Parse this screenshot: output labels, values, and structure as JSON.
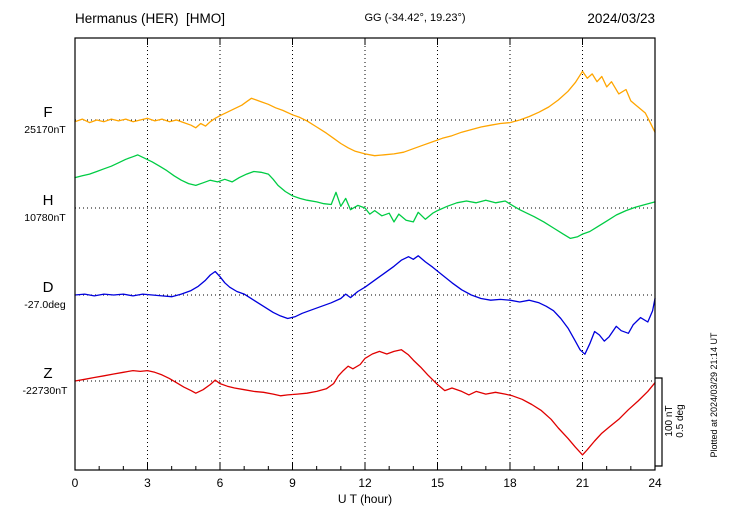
{
  "header": {
    "title": "Hermanus (HER)  [HMO]",
    "coords": "GG (-34.42°, 19.23°)",
    "date": "2024/03/23"
  },
  "axis": {
    "xlabel": "U T (hour)",
    "xticks": [
      0,
      3,
      6,
      9,
      12,
      15,
      18,
      21,
      24
    ]
  },
  "scale_bar": {
    "nt_label": "100 nT",
    "deg_label": "0.5 deg"
  },
  "plot_note": "Plotted at 2024/03/29 21:14 UT",
  "chart_data": {
    "type": "line",
    "title": "Hermanus (HER) [HMO] magnetogram, 2024/03/23",
    "xlabel": "U T (hour)",
    "x_range": [
      0,
      24
    ],
    "x_unit": "hour UT",
    "grid": "dotted vertical lines every 3 h; dotted horizontal baseline per trace",
    "scale_per_division": {
      "nT": 100,
      "deg": 0.5
    },
    "series": [
      {
        "name": "F",
        "baseline_label": "25170nT",
        "baseline_value": 25170,
        "unit": "nT",
        "color": "#ffa500",
        "offsets_unit": "nT deviation from baseline",
        "points": [
          [
            0,
            -2
          ],
          [
            0.3,
            1
          ],
          [
            0.6,
            -3
          ],
          [
            0.9,
            0
          ],
          [
            1.2,
            -2
          ],
          [
            1.5,
            1
          ],
          [
            1.8,
            -1
          ],
          [
            2.1,
            1
          ],
          [
            2.4,
            -2
          ],
          [
            2.7,
            0
          ],
          [
            3,
            2
          ],
          [
            3.3,
            -1
          ],
          [
            3.6,
            1
          ],
          [
            3.9,
            -2
          ],
          [
            4.2,
            0
          ],
          [
            4.5,
            -3
          ],
          [
            4.8,
            -6
          ],
          [
            5,
            -9
          ],
          [
            5.2,
            -4
          ],
          [
            5.4,
            -7
          ],
          [
            5.6,
            -2
          ],
          [
            5.8,
            2
          ],
          [
            6,
            5
          ],
          [
            6.3,
            9
          ],
          [
            6.6,
            13
          ],
          [
            6.9,
            17
          ],
          [
            7.1,
            21
          ],
          [
            7.3,
            25
          ],
          [
            7.5,
            23
          ],
          [
            7.7,
            21
          ],
          [
            8,
            18
          ],
          [
            8.3,
            14
          ],
          [
            8.6,
            11
          ],
          [
            9,
            6
          ],
          [
            9.3,
            3
          ],
          [
            9.6,
            -1
          ],
          [
            10,
            -8
          ],
          [
            10.4,
            -15
          ],
          [
            10.7,
            -21
          ],
          [
            11,
            -27
          ],
          [
            11.3,
            -32
          ],
          [
            11.6,
            -36
          ],
          [
            12,
            -39
          ],
          [
            12.4,
            -41
          ],
          [
            12.8,
            -40
          ],
          [
            13.2,
            -39
          ],
          [
            13.6,
            -37
          ],
          [
            14,
            -33
          ],
          [
            14.4,
            -29
          ],
          [
            14.8,
            -25
          ],
          [
            15.2,
            -21
          ],
          [
            15.6,
            -18
          ],
          [
            16,
            -14
          ],
          [
            16.4,
            -11
          ],
          [
            16.8,
            -8
          ],
          [
            17.2,
            -6
          ],
          [
            17.6,
            -4
          ],
          [
            18,
            -3
          ],
          [
            18.4,
            0
          ],
          [
            18.8,
            4
          ],
          [
            19.2,
            9
          ],
          [
            19.6,
            15
          ],
          [
            20,
            23
          ],
          [
            20.4,
            33
          ],
          [
            20.7,
            43
          ],
          [
            21,
            56
          ],
          [
            21.2,
            48
          ],
          [
            21.4,
            53
          ],
          [
            21.6,
            44
          ],
          [
            21.8,
            50
          ],
          [
            22,
            38
          ],
          [
            22.2,
            44
          ],
          [
            22.5,
            30
          ],
          [
            22.8,
            35
          ],
          [
            23,
            22
          ],
          [
            23.3,
            15
          ],
          [
            23.6,
            8
          ],
          [
            23.8,
            -3
          ],
          [
            24,
            -14
          ]
        ]
      },
      {
        "name": "H",
        "baseline_label": "10780nT",
        "baseline_value": 10780,
        "unit": "nT",
        "color": "#00cc44",
        "offsets_unit": "nT deviation from baseline",
        "points": [
          [
            0,
            35
          ],
          [
            0.3,
            37
          ],
          [
            0.6,
            39
          ],
          [
            0.9,
            42
          ],
          [
            1.2,
            45
          ],
          [
            1.5,
            48
          ],
          [
            1.8,
            52
          ],
          [
            2.1,
            56
          ],
          [
            2.4,
            59
          ],
          [
            2.6,
            61
          ],
          [
            2.9,
            57
          ],
          [
            3.2,
            53
          ],
          [
            3.5,
            48
          ],
          [
            3.8,
            43
          ],
          [
            4.1,
            37
          ],
          [
            4.4,
            32
          ],
          [
            4.7,
            28
          ],
          [
            5,
            26
          ],
          [
            5.3,
            29
          ],
          [
            5.6,
            32
          ],
          [
            5.9,
            30
          ],
          [
            6.2,
            33
          ],
          [
            6.5,
            30
          ],
          [
            6.8,
            35
          ],
          [
            7.1,
            39
          ],
          [
            7.4,
            42
          ],
          [
            7.7,
            41
          ],
          [
            8,
            39
          ],
          [
            8.2,
            33
          ],
          [
            8.4,
            26
          ],
          [
            8.7,
            19
          ],
          [
            9,
            14
          ],
          [
            9.3,
            11
          ],
          [
            9.6,
            9
          ],
          [
            10,
            7
          ],
          [
            10.3,
            5
          ],
          [
            10.6,
            4
          ],
          [
            10.8,
            18
          ],
          [
            11,
            2
          ],
          [
            11.2,
            11
          ],
          [
            11.4,
            -2
          ],
          [
            11.7,
            3
          ],
          [
            12,
            0
          ],
          [
            12.2,
            -7
          ],
          [
            12.4,
            -3
          ],
          [
            12.7,
            -9
          ],
          [
            13,
            -6
          ],
          [
            13.2,
            -16
          ],
          [
            13.4,
            -7
          ],
          [
            13.7,
            -14
          ],
          [
            14,
            -16
          ],
          [
            14.2,
            -5
          ],
          [
            14.5,
            -13
          ],
          [
            14.8,
            -6
          ],
          [
            15,
            -3
          ],
          [
            15.4,
            2
          ],
          [
            15.8,
            6
          ],
          [
            16.2,
            8
          ],
          [
            16.6,
            6
          ],
          [
            17,
            9
          ],
          [
            17.4,
            6
          ],
          [
            17.8,
            8
          ],
          [
            18.1,
            3
          ],
          [
            18.4,
            -2
          ],
          [
            18.7,
            -6
          ],
          [
            19,
            -10
          ],
          [
            19.4,
            -16
          ],
          [
            19.8,
            -23
          ],
          [
            20.2,
            -30
          ],
          [
            20.5,
            -35
          ],
          [
            20.8,
            -33
          ],
          [
            21,
            -30
          ],
          [
            21.3,
            -27
          ],
          [
            21.6,
            -22
          ],
          [
            22,
            -15
          ],
          [
            22.4,
            -8
          ],
          [
            22.8,
            -3
          ],
          [
            23.2,
            1
          ],
          [
            23.6,
            4
          ],
          [
            24,
            7
          ]
        ]
      },
      {
        "name": "D",
        "baseline_label": "-27.0deg",
        "baseline_value": -27.0,
        "unit": "deg",
        "color": "#0000dd",
        "offsets_unit": "nT-equivalent deviation (100 nT corresponds to 0.5 deg)",
        "points": [
          [
            0,
            0
          ],
          [
            0.4,
            1
          ],
          [
            0.8,
            -1
          ],
          [
            1.2,
            1
          ],
          [
            1.6,
            0
          ],
          [
            2,
            1
          ],
          [
            2.4,
            -1
          ],
          [
            2.8,
            1
          ],
          [
            3.2,
            0
          ],
          [
            3.6,
            -1
          ],
          [
            4,
            -2
          ],
          [
            4.4,
            1
          ],
          [
            4.8,
            5
          ],
          [
            5.1,
            10
          ],
          [
            5.4,
            17
          ],
          [
            5.6,
            23
          ],
          [
            5.8,
            27
          ],
          [
            6,
            21
          ],
          [
            6.2,
            14
          ],
          [
            6.4,
            9
          ],
          [
            6.7,
            4
          ],
          [
            7,
            1
          ],
          [
            7.4,
            -6
          ],
          [
            7.8,
            -13
          ],
          [
            8.2,
            -20
          ],
          [
            8.5,
            -24
          ],
          [
            8.8,
            -27
          ],
          [
            9.1,
            -25
          ],
          [
            9.4,
            -21
          ],
          [
            9.8,
            -17
          ],
          [
            10.2,
            -13
          ],
          [
            10.6,
            -9
          ],
          [
            11,
            -4
          ],
          [
            11.2,
            1
          ],
          [
            11.4,
            -3
          ],
          [
            11.7,
            4
          ],
          [
            12,
            9
          ],
          [
            12.4,
            17
          ],
          [
            12.8,
            25
          ],
          [
            13.2,
            33
          ],
          [
            13.5,
            40
          ],
          [
            13.8,
            44
          ],
          [
            14,
            41
          ],
          [
            14.2,
            45
          ],
          [
            14.5,
            38
          ],
          [
            14.8,
            32
          ],
          [
            15.2,
            23
          ],
          [
            15.6,
            14
          ],
          [
            16,
            6
          ],
          [
            16.4,
            0
          ],
          [
            16.8,
            -4
          ],
          [
            17.2,
            -6
          ],
          [
            17.6,
            -5
          ],
          [
            18,
            -6
          ],
          [
            18.4,
            -8
          ],
          [
            18.8,
            -6
          ],
          [
            19.2,
            -9
          ],
          [
            19.5,
            -13
          ],
          [
            19.8,
            -18
          ],
          [
            20.1,
            -27
          ],
          [
            20.4,
            -38
          ],
          [
            20.7,
            -53
          ],
          [
            20.9,
            -63
          ],
          [
            21.1,
            -68
          ],
          [
            21.3,
            -56
          ],
          [
            21.5,
            -42
          ],
          [
            21.7,
            -46
          ],
          [
            21.9,
            -53
          ],
          [
            22.1,
            -48
          ],
          [
            22.4,
            -36
          ],
          [
            22.6,
            -41
          ],
          [
            22.9,
            -44
          ],
          [
            23.1,
            -34
          ],
          [
            23.4,
            -26
          ],
          [
            23.7,
            -31
          ],
          [
            23.9,
            -18
          ],
          [
            24,
            -4
          ]
        ]
      },
      {
        "name": "Z",
        "baseline_label": "-22730nT",
        "baseline_value": -22730,
        "unit": "nT",
        "color": "#e00000",
        "offsets_unit": "nT deviation from baseline",
        "points": [
          [
            0,
            0
          ],
          [
            0.4,
            2
          ],
          [
            0.8,
            4
          ],
          [
            1.2,
            6
          ],
          [
            1.6,
            8
          ],
          [
            2,
            10
          ],
          [
            2.4,
            12
          ],
          [
            2.7,
            11
          ],
          [
            3,
            12
          ],
          [
            3.3,
            10
          ],
          [
            3.6,
            7
          ],
          [
            3.9,
            3
          ],
          [
            4.2,
            -2
          ],
          [
            4.5,
            -7
          ],
          [
            4.8,
            -11
          ],
          [
            5,
            -14
          ],
          [
            5.3,
            -10
          ],
          [
            5.6,
            -4
          ],
          [
            5.8,
            1
          ],
          [
            6,
            -3
          ],
          [
            6.3,
            -6
          ],
          [
            6.6,
            -8
          ],
          [
            7,
            -10
          ],
          [
            7.4,
            -12
          ],
          [
            7.8,
            -13
          ],
          [
            8.2,
            -15
          ],
          [
            8.5,
            -17
          ],
          [
            8.8,
            -16
          ],
          [
            9.2,
            -15
          ],
          [
            9.6,
            -14
          ],
          [
            10,
            -12
          ],
          [
            10.4,
            -9
          ],
          [
            10.7,
            -3
          ],
          [
            10.9,
            6
          ],
          [
            11.1,
            12
          ],
          [
            11.3,
            17
          ],
          [
            11.5,
            14
          ],
          [
            11.8,
            19
          ],
          [
            12,
            26
          ],
          [
            12.3,
            31
          ],
          [
            12.6,
            34
          ],
          [
            12.9,
            31
          ],
          [
            13.2,
            34
          ],
          [
            13.5,
            36
          ],
          [
            13.8,
            30
          ],
          [
            14,
            24
          ],
          [
            14.3,
            16
          ],
          [
            14.6,
            7
          ],
          [
            15,
            -4
          ],
          [
            15.3,
            -11
          ],
          [
            15.6,
            -8
          ],
          [
            16,
            -12
          ],
          [
            16.3,
            -16
          ],
          [
            16.6,
            -12
          ],
          [
            17,
            -15
          ],
          [
            17.4,
            -13
          ],
          [
            17.8,
            -15
          ],
          [
            18.1,
            -17
          ],
          [
            18.5,
            -21
          ],
          [
            18.9,
            -27
          ],
          [
            19.3,
            -34
          ],
          [
            19.7,
            -44
          ],
          [
            20,
            -54
          ],
          [
            20.4,
            -66
          ],
          [
            20.7,
            -76
          ],
          [
            21,
            -85
          ],
          [
            21.2,
            -79
          ],
          [
            21.5,
            -69
          ],
          [
            21.8,
            -60
          ],
          [
            22.1,
            -53
          ],
          [
            22.5,
            -44
          ],
          [
            22.9,
            -33
          ],
          [
            23.3,
            -23
          ],
          [
            23.7,
            -12
          ],
          [
            24,
            -2
          ]
        ]
      }
    ]
  }
}
